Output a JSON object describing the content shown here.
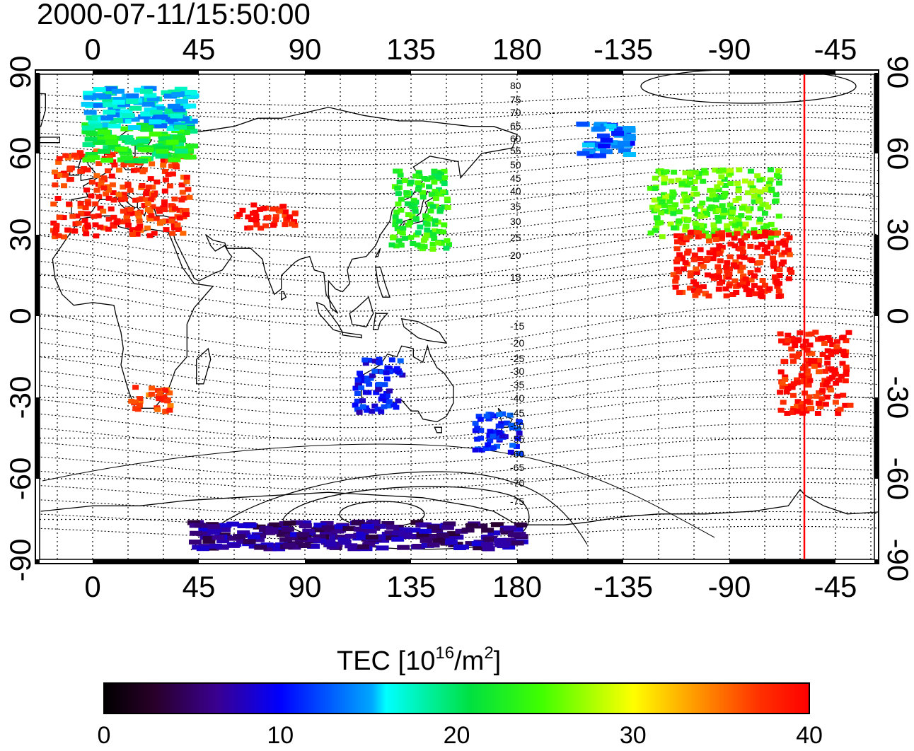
{
  "timestamp": "2000-07-11/15:50:00",
  "longitude_ticks": [
    "0",
    "45",
    "90",
    "135",
    "180",
    "-135",
    "-90",
    "-45"
  ],
  "latitude_ticks": [
    "90",
    "60",
    "30",
    "0",
    "-30",
    "-60",
    "-90"
  ],
  "contour_labels_north": [
    "80",
    "75",
    "70",
    "65",
    "60",
    "55",
    "50",
    "45",
    "40",
    "35",
    "30",
    "25",
    "20",
    "15"
  ],
  "contour_labels_south": [
    "-15",
    "-20",
    "-25",
    "-30",
    "-35",
    "-40",
    "-45",
    "-50",
    "-55",
    "-60",
    "-65",
    "-70",
    "-75"
  ],
  "colorbar": {
    "label_main": "TEC  [10",
    "label_exp1": "16",
    "label_mid": "/m",
    "label_exp2": "2",
    "label_end": "]",
    "ticks": [
      "0",
      "10",
      "20",
      "30",
      "40"
    ],
    "min": 0,
    "max": 40
  },
  "colors": {
    "marker_line": "#ff0000",
    "frame": "#000000"
  },
  "chart_data": {
    "type": "heatmap",
    "title": "2000-07-11/15:50:00",
    "quantity": "TEC [10^16/m^2]",
    "lon_ticks": [
      0,
      45,
      90,
      135,
      180,
      -135,
      -90,
      -45
    ],
    "lat_ticks": [
      90,
      60,
      30,
      0,
      -30,
      -60,
      -90
    ],
    "ylim": [
      -90,
      90
    ],
    "vertical_marker_lon": -58,
    "regions": [
      {
        "lon": [
          -18,
          40
        ],
        "lat": [
          30,
          62
        ],
        "tec": 38
      },
      {
        "lon": [
          -5,
          40
        ],
        "lat": [
          58,
          72
        ],
        "tec": 22
      },
      {
        "lon": [
          -5,
          40
        ],
        "lat": [
          70,
          85
        ],
        "tec": 16
      },
      {
        "lon": [
          60,
          85
        ],
        "lat": [
          33,
          42
        ],
        "tec": 39
      },
      {
        "lon": [
          15,
          32
        ],
        "lat": [
          -35,
          -25
        ],
        "tec": 36
      },
      {
        "lon": [
          125,
          150
        ],
        "lat": [
          25,
          55
        ],
        "tec": 23
      },
      {
        "lon": [
          -125,
          -70
        ],
        "lat": [
          30,
          55
        ],
        "tec": 25
      },
      {
        "lon": [
          -115,
          -65
        ],
        "lat": [
          8,
          32
        ],
        "tec": 39
      },
      {
        "lon": [
          -70,
          -40
        ],
        "lat": [
          -35,
          -5
        ],
        "tec": 39
      },
      {
        "lon": [
          110,
          130
        ],
        "lat": [
          -35,
          -15
        ],
        "tec": 10
      },
      {
        "lon": [
          160,
          180
        ],
        "lat": [
          -50,
          -35
        ],
        "tec": 11
      },
      {
        "lon": [
          -155,
          -135
        ],
        "lat": [
          60,
          72
        ],
        "tec": 13
      },
      {
        "lon": [
          40,
          180
        ],
        "lat": [
          -85,
          -75
        ],
        "tec": 6
      }
    ]
  }
}
